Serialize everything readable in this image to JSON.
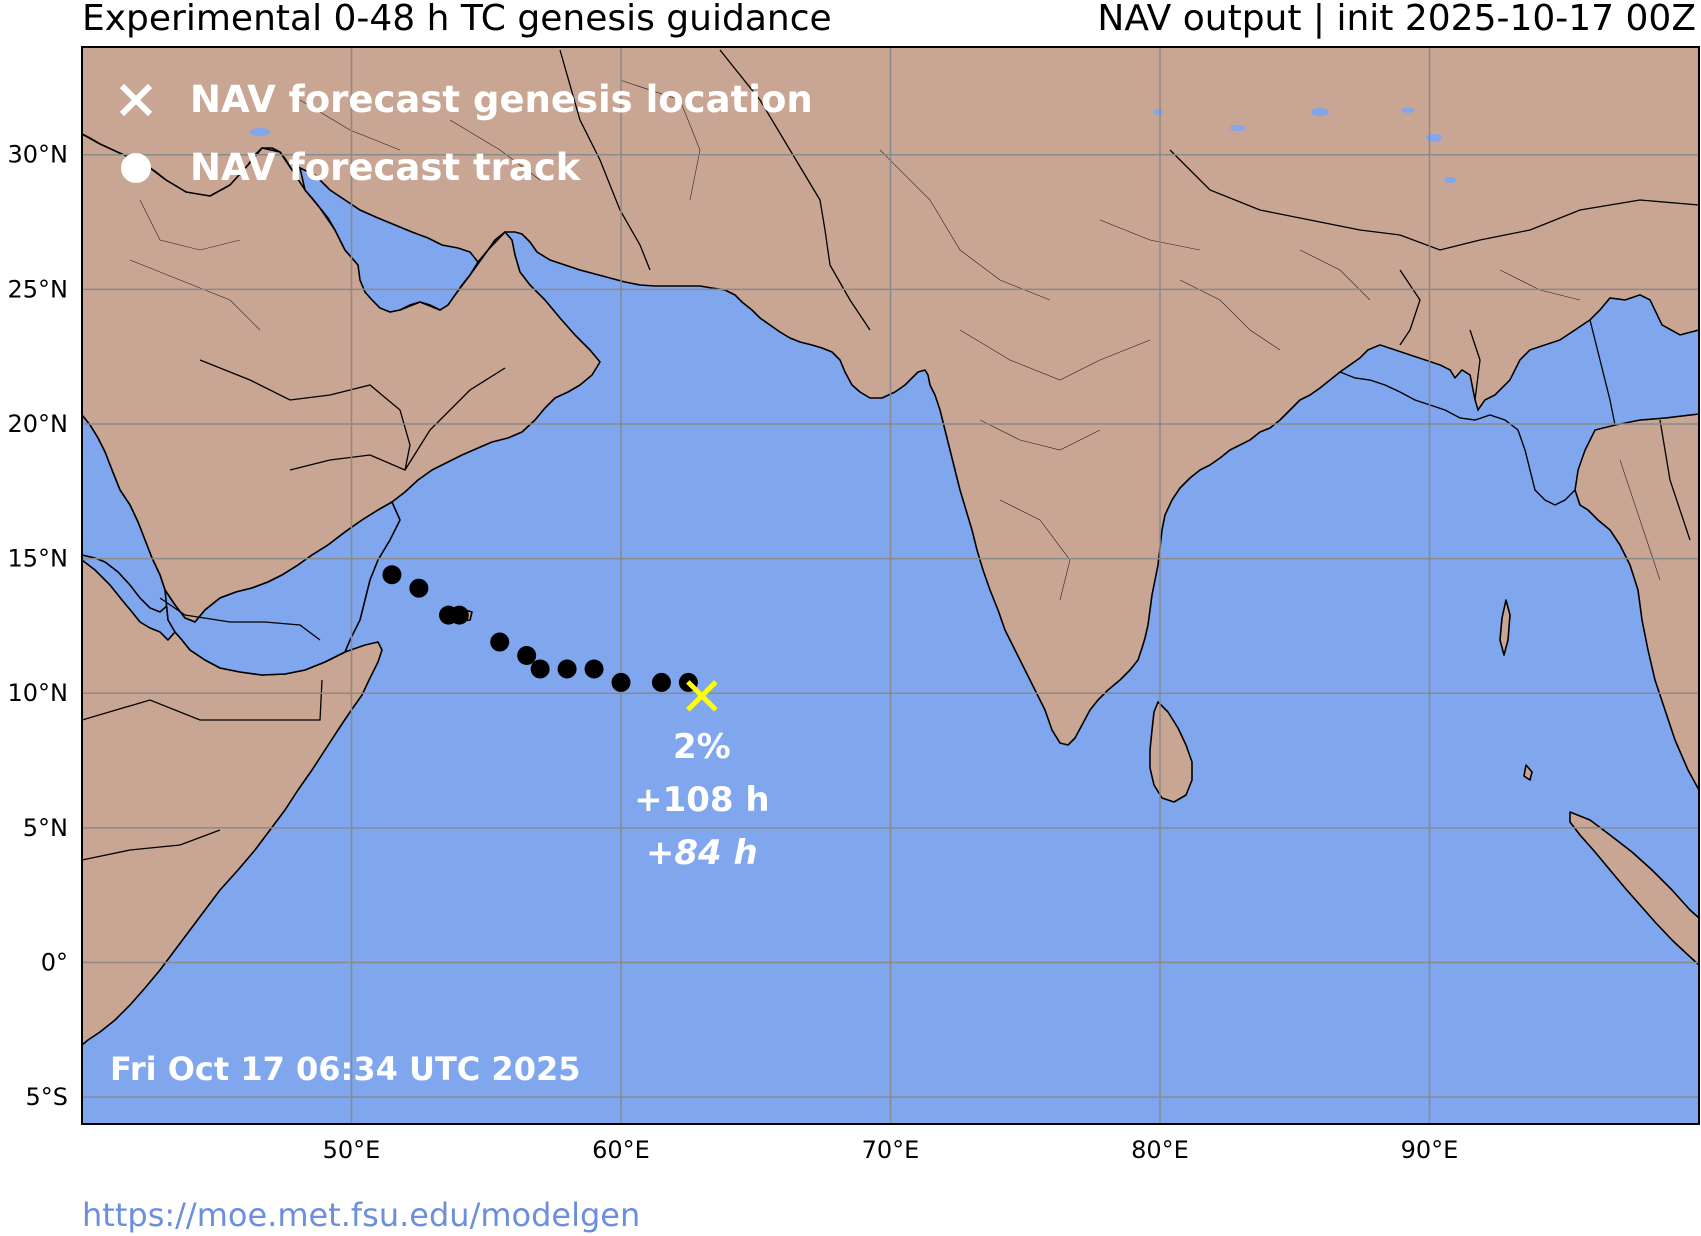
{
  "header": {
    "title_left": "Experimental 0-48 h TC genesis guidance",
    "title_right": "NAV output | init 2025-10-17 00Z"
  },
  "map": {
    "lon_range": [
      40,
      100
    ],
    "lat_range": [
      -6,
      34
    ],
    "ocean_color": "#80a6ee",
    "land_color": "#c9a593",
    "grid": true,
    "lat_ticks": [
      {
        "value": 30,
        "label": "30°N"
      },
      {
        "value": 25,
        "label": "25°N"
      },
      {
        "value": 20,
        "label": "20°N"
      },
      {
        "value": 15,
        "label": "15°N"
      },
      {
        "value": 10,
        "label": "10°N"
      },
      {
        "value": 5,
        "label": "5°N"
      },
      {
        "value": 0,
        "label": "0°"
      },
      {
        "value": -5,
        "label": "5°S"
      }
    ],
    "lon_ticks": [
      {
        "value": 50,
        "label": "50°E"
      },
      {
        "value": 60,
        "label": "60°E"
      },
      {
        "value": 70,
        "label": "70°E"
      },
      {
        "value": 80,
        "label": "80°E"
      },
      {
        "value": 90,
        "label": "90°E"
      }
    ]
  },
  "legend": {
    "genesis_label": "NAV forecast genesis location",
    "track_label": "NAV forecast track",
    "genesis_icon": "x-marker-icon",
    "track_icon": "dot-marker-icon"
  },
  "forecast": {
    "genesis_point": {
      "lon": 63.0,
      "lat": 9.9
    },
    "genesis_color": "#ffff00",
    "track": [
      {
        "lon": 51.5,
        "lat": 14.4
      },
      {
        "lon": 52.5,
        "lat": 13.9
      },
      {
        "lon": 53.6,
        "lat": 12.9
      },
      {
        "lon": 54.0,
        "lat": 12.9
      },
      {
        "lon": 55.5,
        "lat": 11.9
      },
      {
        "lon": 56.5,
        "lat": 11.4
      },
      {
        "lon": 57.0,
        "lat": 10.9
      },
      {
        "lon": 58.0,
        "lat": 10.9
      },
      {
        "lon": 59.0,
        "lat": 10.9
      },
      {
        "lon": 60.0,
        "lat": 10.4
      },
      {
        "lon": 61.5,
        "lat": 10.4
      },
      {
        "lon": 62.5,
        "lat": 10.4
      }
    ],
    "probability": "2%",
    "lead_time": "+108 h",
    "lead_time_alt": "+84 h"
  },
  "timestamp": "Fri Oct 17 06:34 UTC 2025",
  "footer": {
    "url": "https://moe.met.fsu.edu/modelgen"
  }
}
